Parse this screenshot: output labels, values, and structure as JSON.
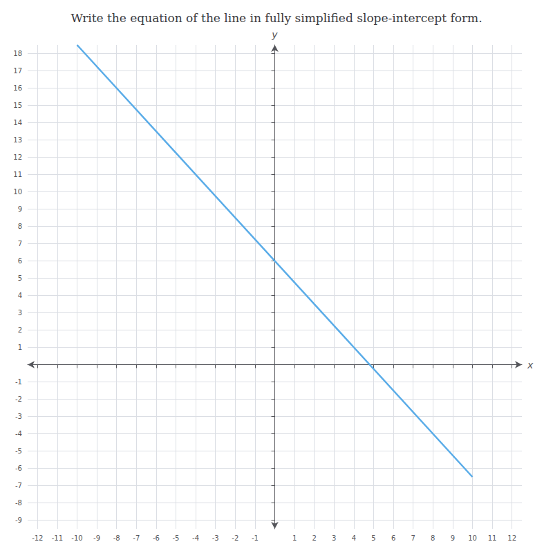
{
  "chart_data": {
    "type": "line",
    "title": "Write the equation of the line in fully simplified slope-intercept form.",
    "xlabel": "x",
    "ylabel": "y",
    "x": [
      -10,
      10
    ],
    "values": [
      18.5,
      -6.5
    ],
    "color": "#5aace8",
    "xlim": [
      -12.5,
      12.5
    ],
    "ylim": [
      -9.5,
      18.5
    ],
    "xticks": [
      -12,
      -11,
      -10,
      -9,
      -8,
      -7,
      -6,
      -5,
      -4,
      -3,
      -2,
      -1,
      1,
      2,
      3,
      4,
      5,
      6,
      7,
      8,
      9,
      10,
      11,
      12
    ],
    "yticks": [
      -9,
      -8,
      -7,
      -6,
      -5,
      -4,
      -3,
      -2,
      -1,
      1,
      2,
      3,
      4,
      5,
      6,
      7,
      8,
      9,
      10,
      11,
      12,
      13,
      14,
      15,
      16,
      17,
      18
    ],
    "grid": true
  }
}
